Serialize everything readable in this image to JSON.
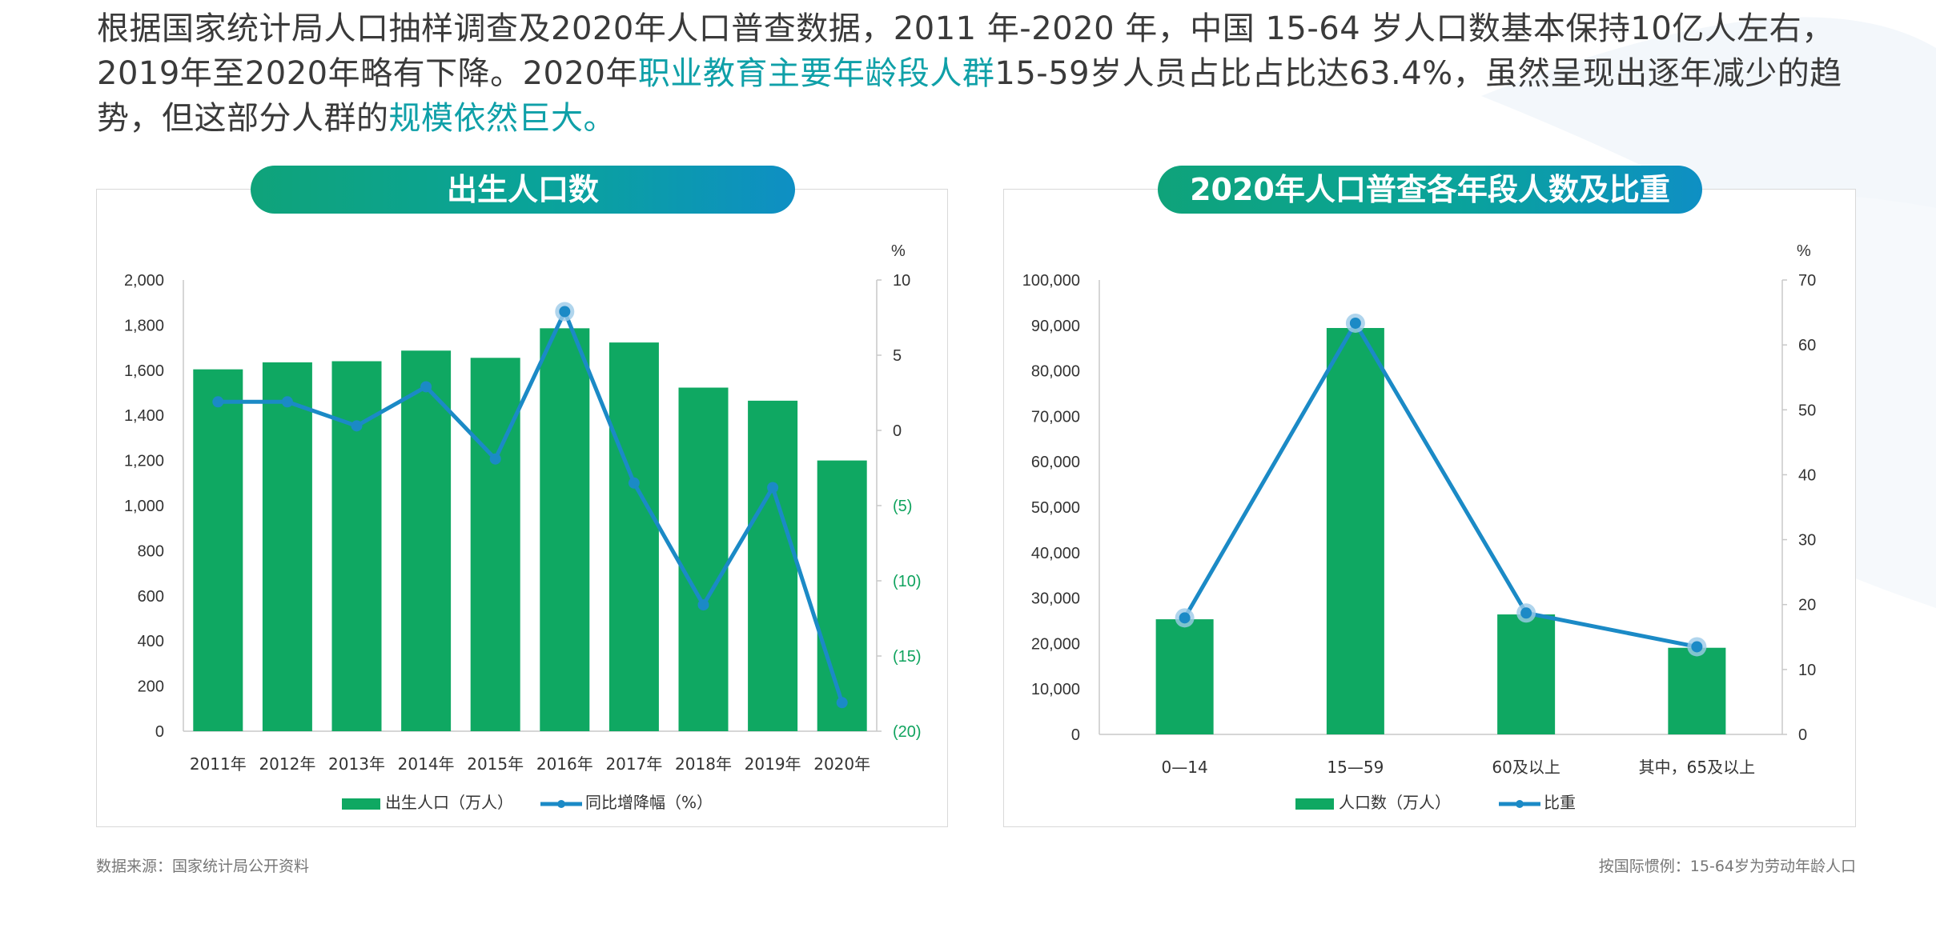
{
  "intro": {
    "p1": "根据国家统计局人口抽样调查及2020年人口普查数据，2011  年-2020  年，中国  15-64  岁人口数基本保持10亿人左右，2019年至2020年略有下降。2020年",
    "hl1": "职业教育主要年龄段人群",
    "p2": "15-59岁人员占比占比达63.4%，虽然呈现出逐年减少的趋势，但这部分人群的",
    "hl2": "规模依然巨大。"
  },
  "colors": {
    "bar": "#0fa862",
    "line": "#1b8ac6",
    "highlight": "#0fa0a8",
    "negative_tick": "#0fa35e"
  },
  "chart_data": [
    {
      "type": "bar",
      "title": "出生人口数",
      "categories": [
        "2011年",
        "2012年",
        "2013年",
        "2014年",
        "2015年",
        "2016年",
        "2017年",
        "2018年",
        "2019年",
        "2020年"
      ],
      "series": [
        {
          "name": "出生人口（万人）",
          "type": "bar",
          "axis": "left",
          "values": [
            1604,
            1635,
            1640,
            1687,
            1655,
            1786,
            1723,
            1523,
            1465,
            1200
          ]
        },
        {
          "name": "同比增降幅（%）",
          "type": "line",
          "axis": "right",
          "values": [
            1.9,
            1.9,
            0.3,
            2.9,
            -1.9,
            7.9,
            -3.5,
            -11.6,
            -3.8,
            -18.1
          ]
        }
      ],
      "left_axis": {
        "min": 0,
        "max": 2000,
        "step": 200,
        "ticks": [
          "0",
          "200",
          "400",
          "600",
          "800",
          "1,000",
          "1,200",
          "1,400",
          "1,600",
          "1,800",
          "2,000"
        ]
      },
      "right_axis": {
        "min": -20,
        "max": 10,
        "step": 5,
        "unit": "%",
        "ticks": [
          "(20)",
          "(15)",
          "(10)",
          "(5)",
          "0",
          "5",
          "10"
        ]
      },
      "highlighted_point_index": 5,
      "legend_position": "bottom"
    },
    {
      "type": "bar",
      "title": "2020年人口普查各年段人数及比重",
      "categories": [
        "0—14",
        "15—59",
        "60及以上",
        "其中，65及以上"
      ],
      "series": [
        {
          "name": "人口数（万人）",
          "type": "bar",
          "axis": "left",
          "values": [
            25338,
            89438,
            26402,
            19064
          ]
        },
        {
          "name": "比重",
          "type": "line",
          "axis": "right",
          "values": [
            17.95,
            63.35,
            18.7,
            13.5
          ]
        }
      ],
      "left_axis": {
        "min": 0,
        "max": 100000,
        "step": 10000,
        "ticks": [
          "0",
          "10,000",
          "20,000",
          "30,000",
          "40,000",
          "50,000",
          "60,000",
          "70,000",
          "80,000",
          "90,000",
          "100,000"
        ]
      },
      "right_axis": {
        "min": 0,
        "max": 70,
        "step": 10,
        "unit": "%",
        "ticks": [
          "0",
          "10",
          "20",
          "30",
          "40",
          "50",
          "60",
          "70"
        ]
      },
      "legend_position": "bottom"
    }
  ],
  "footnotes": {
    "left": "数据来源：国家统计局公开资料",
    "right": "按国际惯例：15-64岁为劳动年龄人口"
  }
}
